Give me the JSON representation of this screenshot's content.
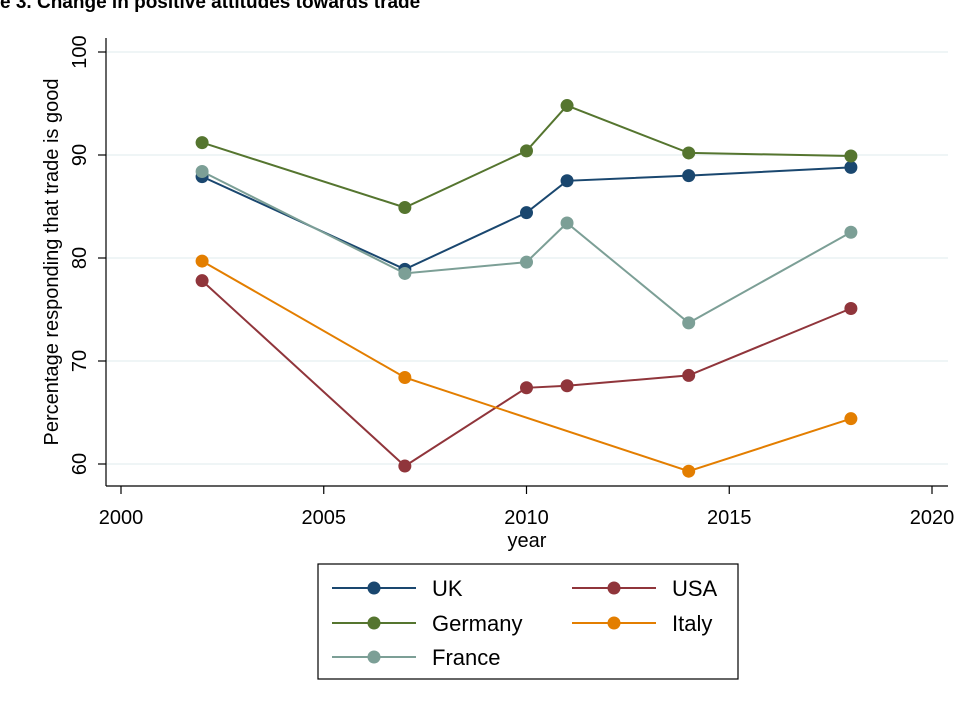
{
  "title": "e 3. Change in positive attitudes towards trade",
  "chart_data": {
    "type": "line",
    "xlabel": "year",
    "ylabel": "Percentage responding that trade is good",
    "xlim": [
      2000,
      2020
    ],
    "ylim": [
      58,
      102
    ],
    "x_ticks": [
      2000,
      2005,
      2010,
      2015,
      2020
    ],
    "y_ticks": [
      60,
      70,
      80,
      90,
      100
    ],
    "grid": "horizontal",
    "legend_position": "bottom",
    "series": [
      {
        "name": "UK",
        "color": "#1a476f",
        "x": [
          2002,
          2007,
          2010,
          2011,
          2014,
          2018
        ],
        "y": [
          87.9,
          78.9,
          84.4,
          87.5,
          88.0,
          88.8
        ]
      },
      {
        "name": "Germany",
        "color": "#55752f",
        "x": [
          2002,
          2007,
          2010,
          2011,
          2014,
          2018
        ],
        "y": [
          91.2,
          84.9,
          90.4,
          94.8,
          90.2,
          89.9
        ]
      },
      {
        "name": "France",
        "color": "#7c9f96",
        "x": [
          2002,
          2007,
          2010,
          2011,
          2014,
          2018
        ],
        "y": [
          88.4,
          78.5,
          79.6,
          83.4,
          73.7,
          82.5
        ]
      },
      {
        "name": "USA",
        "color": "#90353b",
        "x": [
          2002,
          2007,
          2010,
          2011,
          2014,
          2018
        ],
        "y": [
          77.8,
          59.8,
          67.4,
          67.6,
          68.6,
          75.1
        ]
      },
      {
        "name": "Italy",
        "color": "#e37e00",
        "x": [
          2002,
          2007,
          2014,
          2018
        ],
        "y": [
          79.7,
          68.4,
          59.3,
          64.4
        ]
      }
    ]
  }
}
